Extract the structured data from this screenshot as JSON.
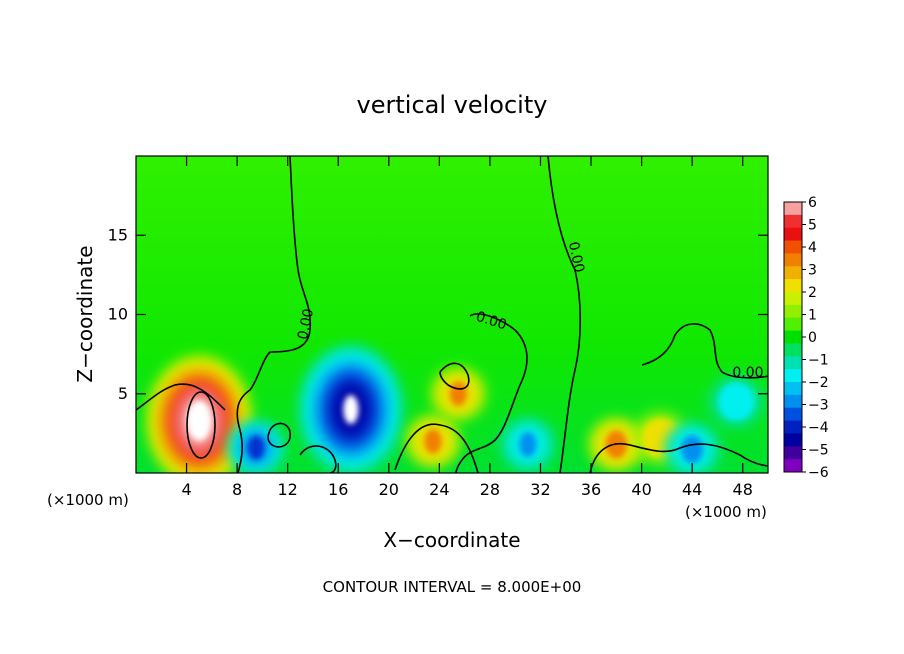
{
  "chart_data": {
    "type": "heatmap",
    "title": "vertical velocity",
    "xlabel": "X−coordinate",
    "ylabel": "Z−coordinate",
    "x_unit_left": "(×1000 m)",
    "x_unit_right": "(×1000 m)",
    "xlim": [
      0,
      50
    ],
    "ylim": [
      0,
      20
    ],
    "x_ticks": [
      4,
      8,
      12,
      16,
      20,
      24,
      28,
      32,
      36,
      40,
      44,
      48
    ],
    "y_ticks": [
      5,
      10,
      15
    ],
    "contour_interval_text": "CONTOUR INTERVAL = 8.000E+00",
    "contour_label": "0.00",
    "colorbar": {
      "ticks": [
        6,
        5,
        4,
        3,
        2,
        1,
        0,
        -1,
        -2,
        -3,
        -4,
        -5,
        -6
      ],
      "tick_labels": [
        "6",
        "5",
        "4",
        "3",
        "2",
        "1",
        "0",
        "−1",
        "−2",
        "−3",
        "−4",
        "−5",
        "−6"
      ],
      "colors": [
        "#f6a0a0",
        "#f03030",
        "#e81010",
        "#f05000",
        "#f08000",
        "#f0b000",
        "#f0e000",
        "#c8f000",
        "#90f000",
        "#50f000",
        "#00e000",
        "#00e060",
        "#00e0b0",
        "#00f0f0",
        "#00c0f0",
        "#0090f0",
        "#0050e0",
        "#0020c0",
        "#0000a0",
        "#4000a0",
        "#8000c0"
      ]
    },
    "features": [
      {
        "kind": "updraft",
        "x": 5,
        "z": 3.3,
        "peak": 8.5
      },
      {
        "kind": "downdraft",
        "x": 17,
        "z": 4,
        "peak": -7.5
      },
      {
        "kind": "updraft",
        "x": 25.5,
        "z": 5,
        "peak": 3
      },
      {
        "kind": "updraft",
        "x": 23.5,
        "z": 2,
        "peak": 3
      },
      {
        "kind": "updraft",
        "x": 38,
        "z": 1.8,
        "peak": 3.5
      },
      {
        "kind": "updraft",
        "x": 41.5,
        "z": 2.2,
        "peak": 2.5
      },
      {
        "kind": "downdraft",
        "x": 9.5,
        "z": 1.6,
        "peak": -5
      },
      {
        "kind": "downdraft",
        "x": 31,
        "z": 1.8,
        "peak": -3
      },
      {
        "kind": "downdraft",
        "x": 44,
        "z": 1.5,
        "peak": -3.5
      },
      {
        "kind": "downdraft",
        "x": 47.5,
        "z": 4.5,
        "peak": -2.5
      }
    ],
    "grid": false,
    "legend": "colorbar-right"
  }
}
